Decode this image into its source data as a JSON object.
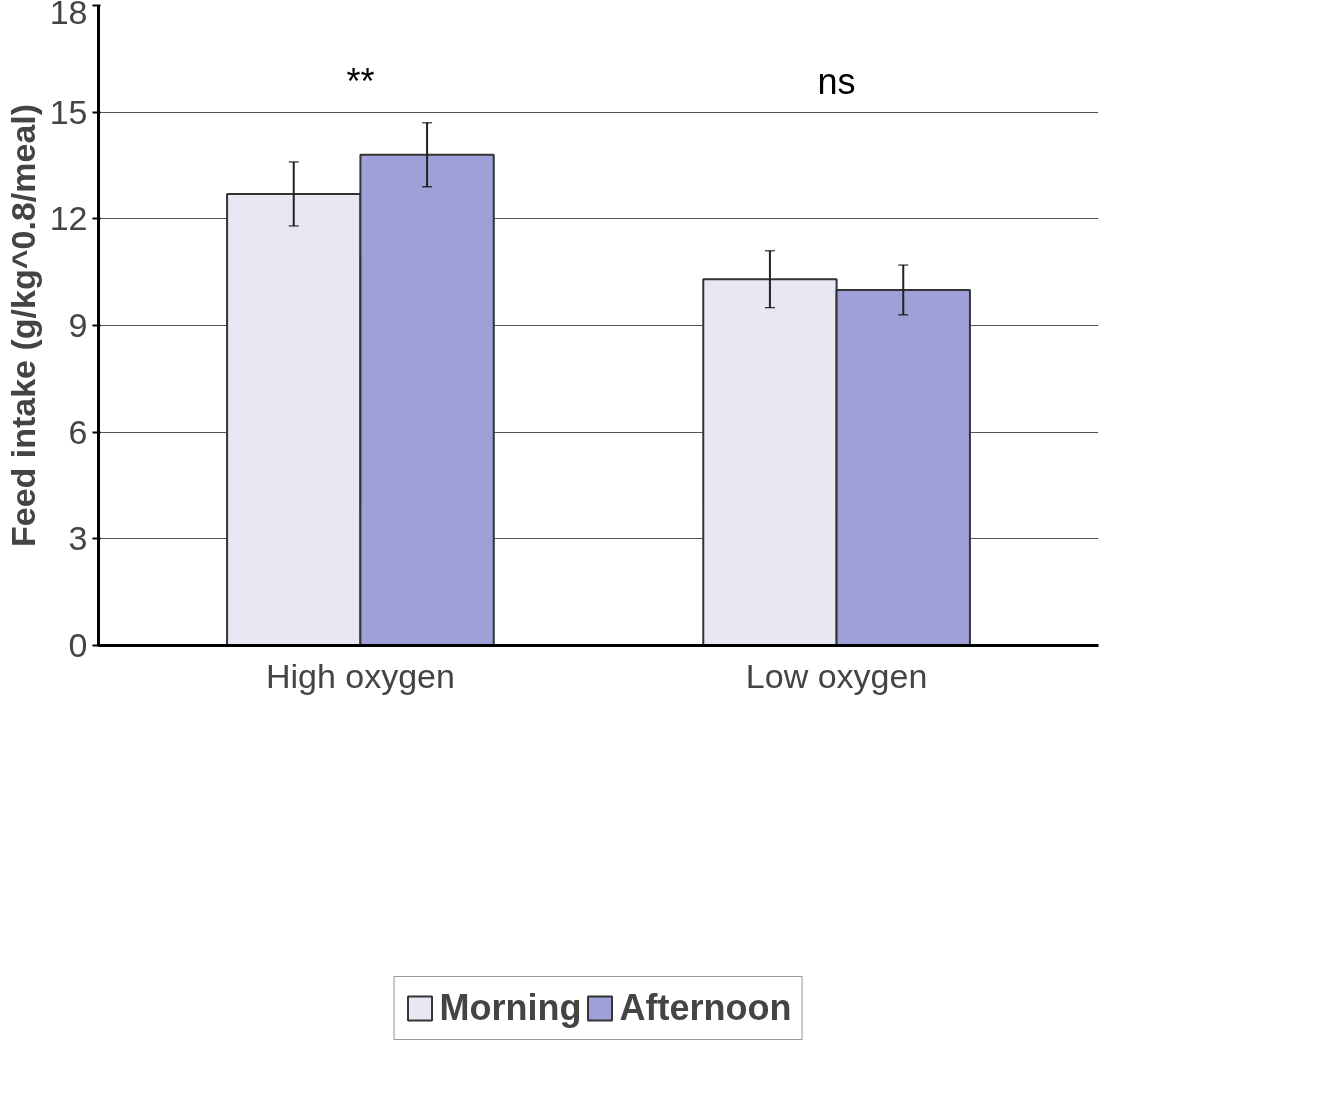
{
  "chart_data": {
    "type": "bar",
    "ylabel": "Feed intake (g/kg^0.8/meal)",
    "categories": [
      "High oxygen",
      "Low oxygen"
    ],
    "series": [
      {
        "name": "Morning",
        "color": "#e8e8f4",
        "values": [
          12.7,
          10.3
        ],
        "errors": [
          0.9,
          0.8
        ]
      },
      {
        "name": "Afternoon",
        "color": "#a0a0d8",
        "values": [
          13.8,
          10.0
        ],
        "errors": [
          0.9,
          0.7
        ]
      }
    ],
    "ylim": [
      0,
      18
    ],
    "yticks": [
      0,
      3,
      6,
      9,
      12,
      15,
      18
    ],
    "grid": "y",
    "legend": "bottom",
    "annotations": [
      "**",
      "ns"
    ]
  }
}
